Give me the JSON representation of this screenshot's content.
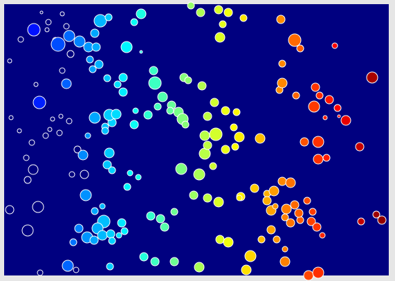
{
  "image": {
    "description": "",
    "colors": {
      "border": "#e6e6e6",
      "background": "#000080",
      "outline": "#ffffff"
    },
    "colormap": "jet",
    "blob_count": 160
  }
}
